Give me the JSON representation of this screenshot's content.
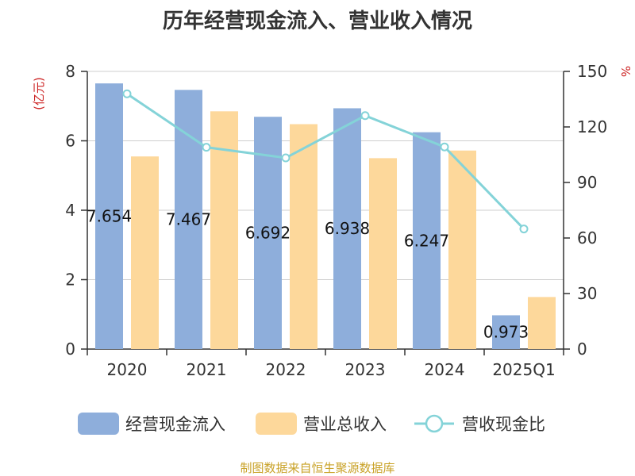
{
  "chart_data": {
    "type": "bar",
    "title": "历年经营现金流入、营业收入情况",
    "categories": [
      "2020",
      "2021",
      "2022",
      "2023",
      "2024",
      "2025Q1"
    ],
    "series": [
      {
        "name": "经营现金流入",
        "kind": "bar",
        "axis": "left",
        "color": "#8eaedb",
        "values": [
          7.654,
          7.467,
          6.692,
          6.938,
          6.247,
          0.973
        ],
        "labels": [
          "7.654",
          "7.467",
          "6.692",
          "6.938",
          "6.247",
          "0.973"
        ]
      },
      {
        "name": "营业总收入",
        "kind": "bar",
        "axis": "left",
        "color": "#fdd89b",
        "values": [
          5.55,
          6.85,
          6.48,
          5.5,
          5.72,
          1.5
        ]
      },
      {
        "name": "营收现金比",
        "kind": "line",
        "axis": "right",
        "color": "#84d3d8",
        "values": [
          137.9,
          109.0,
          103.3,
          126.1,
          109.2,
          64.9
        ]
      }
    ],
    "y_left": {
      "unit": "(亿元)",
      "ylim": [
        0,
        8
      ],
      "ticks": [
        "0",
        "2",
        "4",
        "6",
        "8"
      ]
    },
    "y_right": {
      "unit": "%",
      "ylim": [
        0,
        150
      ],
      "ticks": [
        "0",
        "30",
        "60",
        "90",
        "120",
        "150"
      ]
    },
    "grid": true,
    "legend_position": "bottom"
  },
  "source_text": "制图数据来自恒生聚源数据库"
}
